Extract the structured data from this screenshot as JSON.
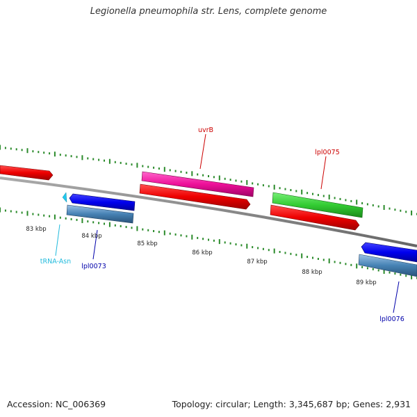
{
  "title": "Legionella pneumophila str. Lens, complete genome",
  "footer": {
    "accession": "Accession: NC_006369",
    "summary": "Topology: circular; Length: 3,345,687 bp; Genes: 2,931"
  },
  "colors": {
    "backbone": "#808080",
    "tick": "#2a8a2a",
    "cds_red": "#ee0000",
    "cds_pink": "#ee1199",
    "cds_green": "#33cc33",
    "cds_blue": "#0000ee",
    "cds_steel": "#4682b4",
    "trna": "#22c8ee",
    "label_red": "#cc0000",
    "label_blue": "#0000aa",
    "label_cyan": "#22bbdd"
  },
  "scale_labels": [
    "83 kbp",
    "84 kbp",
    "85 kbp",
    "86 kbp",
    "87 kbp",
    "88 kbp",
    "89 kbp"
  ],
  "gene_labels": {
    "uvrB": "uvrB",
    "lpl0075": "lpl0075",
    "trna_asn": "tRNA-Asn",
    "lpl0073": "lpl0073",
    "lpl0076": "lpl0076"
  }
}
